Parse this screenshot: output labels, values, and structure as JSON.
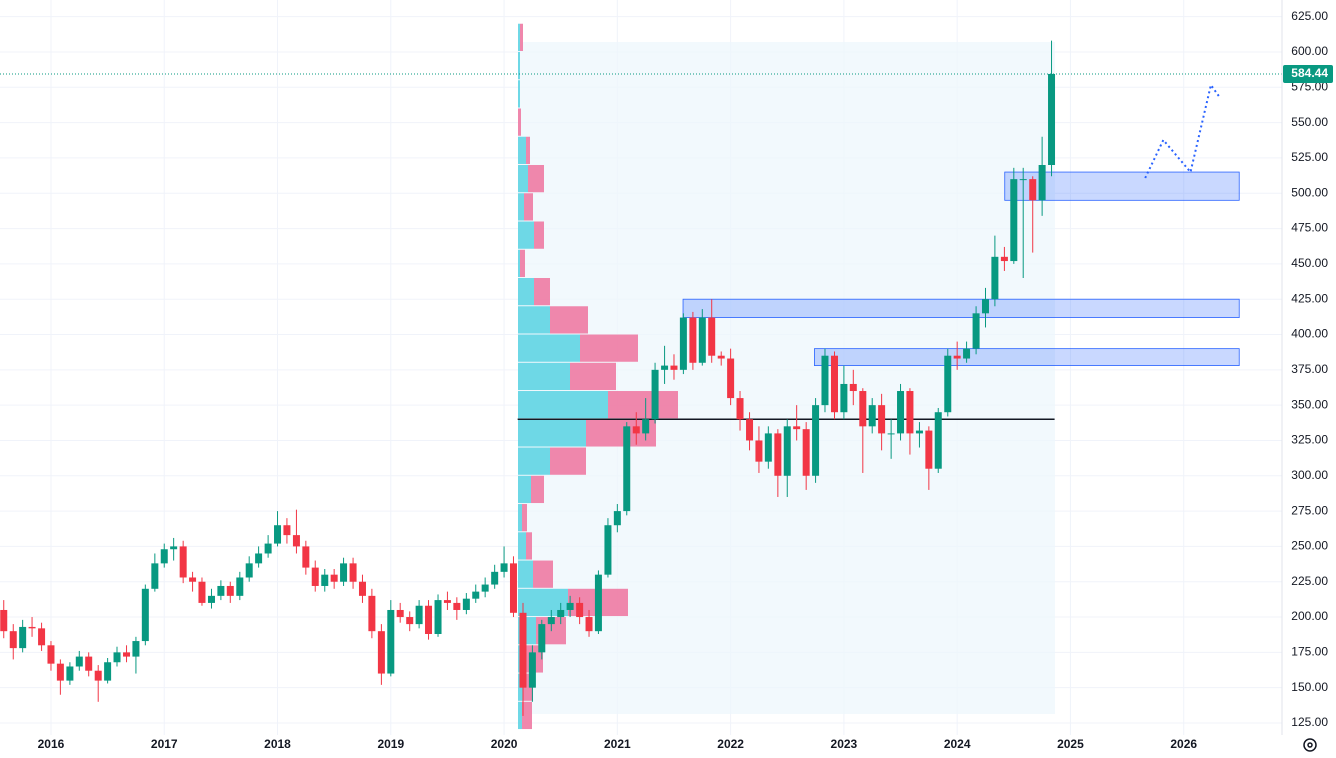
{
  "chart_data": {
    "type": "candlestick",
    "up_color": "#089981",
    "down_color": "#f23645",
    "xlim": [
      2015.55,
      2026.85
    ],
    "xticks": [
      2016,
      2017,
      2018,
      2019,
      2020,
      2021,
      2022,
      2023,
      2024,
      2025,
      2026
    ],
    "ylim": [
      116.5,
      636.8
    ],
    "yticks": [
      {
        "value": 125,
        "label": "125.00"
      },
      {
        "value": 150,
        "label": "150.00"
      },
      {
        "value": 175,
        "label": "175.00"
      },
      {
        "value": 200,
        "label": "200.00"
      },
      {
        "value": 225,
        "label": "225.00"
      },
      {
        "value": 250,
        "label": "250.00"
      },
      {
        "value": 275,
        "label": "275.00"
      },
      {
        "value": 300,
        "label": "300.00"
      },
      {
        "value": 325,
        "label": "325.00"
      },
      {
        "value": 350,
        "label": "350.00"
      },
      {
        "value": 375,
        "label": "375.00"
      },
      {
        "value": 400,
        "label": "400.00"
      },
      {
        "value": 425,
        "label": "425.00"
      },
      {
        "value": 450,
        "label": "450.00"
      },
      {
        "value": 475,
        "label": "475.00"
      },
      {
        "value": 500,
        "label": "500.00"
      },
      {
        "value": 525,
        "label": "525.00"
      },
      {
        "value": 550,
        "label": "550.00"
      },
      {
        "value": 575,
        "label": "575.00"
      },
      {
        "value": 600,
        "label": "600.00"
      },
      {
        "value": 625,
        "label": "625.00"
      }
    ],
    "grid": true,
    "x": [
      2015.583,
      2015.667,
      2015.75,
      2015.833,
      2015.917,
      2016,
      2016.083,
      2016.167,
      2016.25,
      2016.333,
      2016.417,
      2016.5,
      2016.583,
      2016.667,
      2016.75,
      2016.833,
      2016.917,
      2017,
      2017.083,
      2017.167,
      2017.25,
      2017.333,
      2017.417,
      2017.5,
      2017.583,
      2017.667,
      2017.75,
      2017.833,
      2017.917,
      2018,
      2018.083,
      2018.167,
      2018.25,
      2018.333,
      2018.417,
      2018.5,
      2018.583,
      2018.667,
      2018.75,
      2018.833,
      2018.917,
      2019,
      2019.083,
      2019.167,
      2019.25,
      2019.333,
      2019.417,
      2019.5,
      2019.583,
      2019.667,
      2019.75,
      2019.833,
      2019.917,
      2020,
      2020.083,
      2020.167,
      2020.25,
      2020.333,
      2020.417,
      2020.5,
      2020.583,
      2020.667,
      2020.75,
      2020.833,
      2020.917,
      2021,
      2021.083,
      2021.167,
      2021.25,
      2021.333,
      2021.417,
      2021.5,
      2021.583,
      2021.667,
      2021.75,
      2021.833,
      2021.917,
      2022,
      2022.083,
      2022.167,
      2022.25,
      2022.333,
      2022.417,
      2022.5,
      2022.583,
      2022.667,
      2022.75,
      2022.833,
      2022.917,
      2023,
      2023.083,
      2023.167,
      2023.25,
      2023.333,
      2023.417,
      2023.5,
      2023.583,
      2023.667,
      2023.75,
      2023.833,
      2023.917,
      2024,
      2024.083,
      2024.167,
      2024.25,
      2024.333,
      2024.417,
      2024.5,
      2024.583,
      2024.667,
      2024.75,
      2024.833
    ],
    "open": [
      205,
      190,
      178,
      193,
      192,
      180,
      167,
      155,
      165,
      172,
      162,
      155,
      168,
      175,
      172,
      183,
      220,
      238,
      248,
      250,
      228,
      225,
      210,
      215,
      222,
      215,
      228,
      238,
      245,
      252,
      265,
      258,
      250,
      235,
      222,
      230,
      225,
      238,
      225,
      215,
      190,
      160,
      205,
      200,
      195,
      208,
      188,
      212,
      210,
      205,
      213,
      218,
      223,
      232,
      238,
      203,
      150,
      175,
      195,
      200,
      205,
      210,
      200,
      190,
      230,
      265,
      275,
      335,
      330,
      340,
      375,
      378,
      375,
      412,
      380,
      412,
      385,
      383,
      355,
      340,
      325,
      310,
      330,
      300,
      335,
      333,
      300,
      350,
      385,
      345,
      365,
      360,
      335,
      350,
      330,
      330,
      360,
      330,
      332,
      305,
      345,
      385,
      383,
      390,
      415,
      425,
      455,
      452,
      510,
      510,
      495,
      520
    ],
    "high": [
      212,
      195,
      198,
      200,
      196,
      183,
      170,
      168,
      176,
      175,
      166,
      171,
      179,
      180,
      186,
      223,
      245,
      252,
      256,
      254,
      232,
      228,
      220,
      226,
      225,
      232,
      243,
      250,
      258,
      275,
      270,
      276,
      254,
      240,
      234,
      234,
      242,
      242,
      230,
      220,
      195,
      212,
      210,
      204,
      212,
      212,
      216,
      218,
      214,
      217,
      223,
      228,
      237,
      250,
      243,
      210,
      180,
      198,
      205,
      210,
      215,
      214,
      205,
      233,
      270,
      280,
      338,
      345,
      355,
      380,
      392,
      386,
      415,
      416,
      418,
      425,
      388,
      390,
      360,
      345,
      335,
      335,
      333,
      340,
      350,
      338,
      355,
      390,
      388,
      378,
      375,
      362,
      355,
      358,
      340,
      365,
      362,
      338,
      335,
      348,
      390,
      395,
      395,
      420,
      433,
      470,
      462,
      518,
      518,
      512,
      540,
      608
    ],
    "low": [
      185,
      170,
      175,
      186,
      176,
      162,
      145,
      152,
      162,
      158,
      140,
      153,
      165,
      168,
      160,
      180,
      218,
      235,
      240,
      224,
      218,
      208,
      206,
      212,
      210,
      212,
      225,
      235,
      242,
      250,
      252,
      245,
      230,
      218,
      218,
      220,
      222,
      220,
      210,
      185,
      152,
      158,
      196,
      190,
      192,
      184,
      186,
      205,
      198,
      202,
      210,
      214,
      220,
      228,
      200,
      130,
      140,
      170,
      190,
      195,
      200,
      195,
      186,
      188,
      228,
      260,
      272,
      322,
      325,
      337,
      365,
      368,
      372,
      375,
      378,
      380,
      378,
      350,
      332,
      318,
      302,
      305,
      285,
      285,
      325,
      290,
      295,
      345,
      340,
      340,
      350,
      302,
      330,
      318,
      312,
      325,
      315,
      320,
      290,
      302,
      342,
      375,
      380,
      386,
      405,
      420,
      445,
      450,
      440,
      458,
      484,
      512
    ],
    "close": [
      190,
      178,
      193,
      192,
      180,
      167,
      155,
      165,
      172,
      162,
      155,
      168,
      175,
      172,
      183,
      220,
      238,
      248,
      250,
      228,
      225,
      210,
      215,
      222,
      215,
      228,
      238,
      245,
      252,
      265,
      258,
      250,
      235,
      222,
      230,
      225,
      238,
      225,
      215,
      190,
      160,
      205,
      200,
      195,
      208,
      188,
      212,
      210,
      205,
      213,
      218,
      223,
      232,
      238,
      203,
      150,
      175,
      195,
      200,
      205,
      210,
      200,
      190,
      230,
      265,
      275,
      335,
      330,
      340,
      375,
      378,
      375,
      412,
      380,
      412,
      385,
      383,
      355,
      340,
      325,
      310,
      330,
      300,
      335,
      333,
      300,
      350,
      385,
      345,
      365,
      360,
      335,
      350,
      330,
      330,
      360,
      330,
      332,
      305,
      345,
      385,
      383,
      390,
      415,
      425,
      455,
      452,
      510,
      510,
      495,
      520,
      584.44
    ],
    "volume_profile": {
      "up_color": "#5fd4e3",
      "down_color": "#ee7aa3",
      "bins": [
        120,
        140,
        160,
        180,
        200,
        220,
        240,
        260,
        280,
        300,
        320,
        340,
        360,
        380,
        400,
        420,
        440,
        460,
        480,
        500,
        520,
        540,
        560,
        580,
        600,
        620
      ],
      "up": [
        4,
        5,
        5,
        18,
        50,
        15,
        8,
        4,
        13,
        32,
        68,
        90,
        52,
        62,
        32,
        16,
        2,
        16,
        6,
        10,
        8,
        0,
        2,
        2,
        2
      ],
      "down": [
        10,
        10,
        20,
        30,
        60,
        20,
        6,
        5,
        13,
        36,
        70,
        70,
        46,
        58,
        38,
        16,
        5,
        10,
        9,
        16,
        4,
        3,
        0,
        0,
        3
      ]
    },
    "zones": [
      {
        "low": 495,
        "high": 515,
        "start": 2024.42,
        "end": 2026.49
      },
      {
        "low": 412,
        "high": 425,
        "start": 2021.58,
        "end": 2026.49
      },
      {
        "low": 378,
        "high": 390,
        "start": 2022.74,
        "end": 2026.49
      }
    ],
    "poc_line": {
      "value": 340,
      "start": 2020.12,
      "end": 2024.86
    },
    "projection": {
      "x": [
        2025.66,
        2025.82,
        2026.06,
        2026.24,
        2026.31
      ],
      "values": [
        510.8,
        537.7,
        515,
        576.6,
        568.8
      ]
    }
  }
}
